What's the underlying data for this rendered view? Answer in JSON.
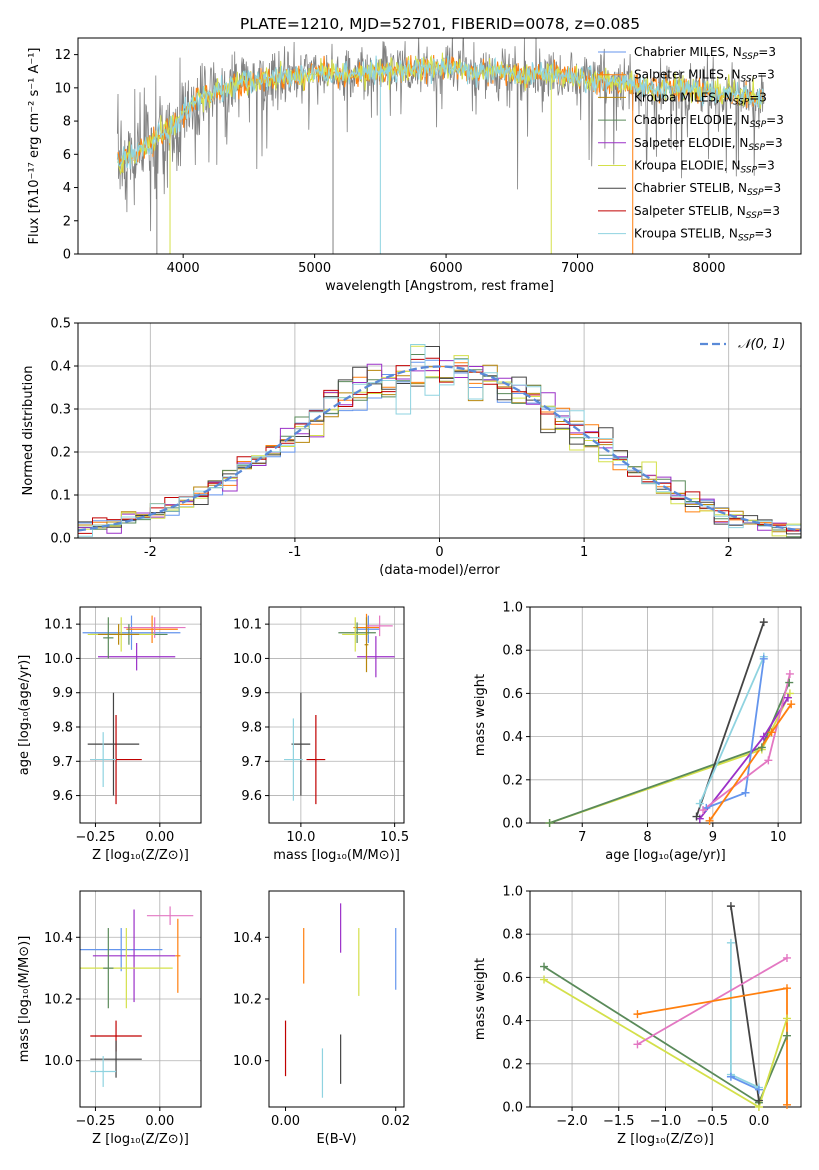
{
  "figure": {
    "title": "PLATE=1210, MJD=52701, FIBERID=0078, z=0.085"
  },
  "colors": {
    "chabrier_miles": "#6495ed",
    "salpeter_miles": "#ff7f0e",
    "kroupa_miles": "#b8860b",
    "chabrier_elodie": "#5a8a5a",
    "salpeter_elodie": "#9b30c8",
    "kroupa_elodie": "#d4e04a",
    "chabrier_stelib": "#444444",
    "salpeter_stelib": "#c00000",
    "kroupa_stelib": "#8fd3e0",
    "pink": "#e377c2",
    "gauss": "#5a8ad8",
    "grid": "#b0b0b0"
  },
  "chart_data": [
    {
      "id": "spectrum",
      "type": "line",
      "xlabel": "wavelength [Angstrom, rest frame]",
      "ylabel": "Flux [fλ10⁻¹⁷ erg cm⁻² s⁻¹ A⁻¹]",
      "xlim": [
        3200,
        8700
      ],
      "ylim": [
        0,
        13
      ],
      "xticks": [
        4000,
        5000,
        6000,
        7000,
        8000
      ],
      "yticks": [
        0,
        2,
        4,
        6,
        8,
        10,
        12
      ],
      "grid": false,
      "legend_position": "top-right",
      "legend": [
        "Chabrier MILES, N_SSP=3",
        "Salpeter MILES, N_SSP=3",
        "Kroupa MILES, N_SSP=3",
        "Chabrier ELODIE, N_SSP=3",
        "Salpeter ELODIE, N_SSP=3",
        "Kroupa ELODIE, N_SSP=3",
        "Chabrier STELIB, N_SSP=3",
        "Salpeter STELIB, N_SSP=3",
        "Kroupa STELIB, N_SSP=3"
      ],
      "continuum": [
        [
          3500,
          5.5
        ],
        [
          3600,
          5.8
        ],
        [
          3700,
          6.4
        ],
        [
          3800,
          7.0
        ],
        [
          3900,
          7.6
        ],
        [
          4000,
          8.4
        ],
        [
          4100,
          9.3
        ],
        [
          4200,
          9.6
        ],
        [
          4400,
          10.2
        ],
        [
          4600,
          10.5
        ],
        [
          4800,
          10.6
        ],
        [
          5000,
          10.9
        ],
        [
          5200,
          10.7
        ],
        [
          5400,
          10.9
        ],
        [
          5600,
          11.0
        ],
        [
          5800,
          11.2
        ],
        [
          6000,
          11.3
        ],
        [
          6200,
          11.0
        ],
        [
          6400,
          10.9
        ],
        [
          6600,
          10.8
        ],
        [
          6800,
          10.9
        ],
        [
          7000,
          10.6
        ],
        [
          7200,
          10.4
        ],
        [
          7400,
          10.1
        ],
        [
          7600,
          10.0
        ],
        [
          7800,
          9.9
        ],
        [
          8000,
          9.8
        ],
        [
          8200,
          9.6
        ],
        [
          8400,
          9.4
        ]
      ]
    },
    {
      "id": "residual_histogram",
      "type": "bar",
      "xlabel": "(data-model)/error",
      "ylabel": "Normed distribution",
      "xlim": [
        -2.5,
        2.5
      ],
      "ylim": [
        0,
        0.5
      ],
      "xticks": [
        -2,
        -1,
        0,
        1,
        2
      ],
      "yticks": [
        0.0,
        0.1,
        0.2,
        0.3,
        0.4,
        0.5
      ],
      "grid": true,
      "legend_position": "top-right",
      "gauss_label": "𝒩(0, 1)",
      "bin_width": 0.1
    },
    {
      "id": "age_vs_Z",
      "type": "scatter",
      "xlabel": "Z [log₁₀(Z/Z⊙)]",
      "ylabel": "age  [log₁₀(age/yr)]",
      "xlim": [
        -0.31,
        0.16
      ],
      "ylim": [
        9.52,
        10.15
      ],
      "xticks": [
        -0.25,
        0.0
      ],
      "xticklabels": [
        "−0.25",
        "0.00"
      ],
      "yticks": [
        9.6,
        9.7,
        9.8,
        9.9,
        10.0,
        10.1
      ],
      "grid": true,
      "points": [
        {
          "x": -0.11,
          "y": 10.075,
          "xerr": 0.19,
          "yerr": 0.05,
          "c": "chabrier_miles"
        },
        {
          "x": -0.03,
          "y": 10.085,
          "xerr": 0.1,
          "yerr": 0.04,
          "c": "salpeter_miles"
        },
        {
          "x": -0.02,
          "y": 10.09,
          "xerr": 0.12,
          "yerr": 0.03,
          "c": "pink"
        },
        {
          "x": -0.12,
          "y": 10.07,
          "xerr": 0.15,
          "yerr": 0.03,
          "c": "chabrier_elodie"
        },
        {
          "x": -0.09,
          "y": 10.005,
          "xerr": 0.15,
          "yerr": 0.04,
          "c": "salpeter_elodie"
        },
        {
          "x": -0.15,
          "y": 10.07,
          "xerr": 0.13,
          "yerr": 0.05,
          "c": "kroupa_elodie"
        },
        {
          "x": -0.16,
          "y": 10.07,
          "xerr": 0.08,
          "yerr": 0.03,
          "c": "kroupa_miles"
        },
        {
          "x": -0.2,
          "y": 10.06,
          "xerr": 0.02,
          "yerr": 0.06,
          "c": "chabrier_elodie"
        },
        {
          "x": -0.18,
          "y": 9.75,
          "xerr": 0.1,
          "yerr": 0.15,
          "c": "chabrier_stelib"
        },
        {
          "x": -0.17,
          "y": 9.705,
          "xerr": 0.1,
          "yerr": 0.13,
          "c": "salpeter_stelib"
        },
        {
          "x": -0.22,
          "y": 9.705,
          "xerr": 0.05,
          "yerr": 0.08,
          "c": "kroupa_stelib"
        }
      ]
    },
    {
      "id": "age_vs_mass",
      "type": "scatter",
      "xlabel": "mass [log₁₀(M/M⊙)]",
      "ylabel": "",
      "xlim": [
        9.83,
        10.55
      ],
      "ylim": [
        9.52,
        10.15
      ],
      "xticks": [
        10.0,
        10.5
      ],
      "xticklabels": [
        "10.0",
        "10.5"
      ],
      "yticks": [
        9.6,
        9.7,
        9.8,
        9.9,
        10.0,
        10.1
      ],
      "grid": true,
      "points": [
        {
          "x": 10.36,
          "y": 10.085,
          "xerr": 0.06,
          "yerr": 0.04,
          "c": "chabrier_miles"
        },
        {
          "x": 10.35,
          "y": 10.09,
          "xerr": 0.07,
          "yerr": 0.04,
          "c": "salpeter_miles"
        },
        {
          "x": 10.42,
          "y": 10.095,
          "xerr": 0.07,
          "yerr": 0.03,
          "c": "pink"
        },
        {
          "x": 10.3,
          "y": 10.075,
          "xerr": 0.1,
          "yerr": 0.03,
          "c": "chabrier_elodie"
        },
        {
          "x": 10.4,
          "y": 10.005,
          "xerr": 0.1,
          "yerr": 0.06,
          "c": "salpeter_elodie"
        },
        {
          "x": 10.29,
          "y": 10.07,
          "xerr": 0.07,
          "yerr": 0.05,
          "c": "kroupa_elodie"
        },
        {
          "x": 10.35,
          "y": 10.04,
          "xerr": 0.01,
          "yerr": 0.08,
          "c": "kroupa_miles"
        },
        {
          "x": 10.0,
          "y": 9.75,
          "xerr": 0.05,
          "yerr": 0.15,
          "c": "chabrier_stelib"
        },
        {
          "x": 10.08,
          "y": 9.705,
          "xerr": 0.05,
          "yerr": 0.13,
          "c": "salpeter_stelib"
        },
        {
          "x": 9.96,
          "y": 9.705,
          "xerr": 0.05,
          "yerr": 0.12,
          "c": "kroupa_stelib"
        }
      ]
    },
    {
      "id": "weight_vs_age",
      "type": "line",
      "xlabel": "age  [log₁₀(age/yr)]",
      "ylabel": "mass weight",
      "xlim": [
        6.2,
        10.35
      ],
      "ylim": [
        0.0,
        1.0
      ],
      "xticks": [
        7,
        8,
        9,
        10
      ],
      "yticks": [
        0.0,
        0.2,
        0.4,
        0.6,
        0.8,
        1.0
      ],
      "grid": true,
      "series": [
        {
          "c": "kroupa_elodie",
          "pts": [
            [
              6.5,
              0.0
            ],
            [
              9.75,
              0.34
            ],
            [
              10.18,
              0.6
            ]
          ]
        },
        {
          "c": "chabrier_elodie",
          "pts": [
            [
              6.5,
              0.0
            ],
            [
              9.75,
              0.35
            ],
            [
              10.17,
              0.65
            ]
          ]
        },
        {
          "c": "salpeter_elodie",
          "pts": [
            [
              8.8,
              0.02
            ],
            [
              9.78,
              0.4
            ],
            [
              10.15,
              0.58
            ]
          ]
        },
        {
          "c": "chabrier_stelib",
          "pts": [
            [
              8.75,
              0.03
            ],
            [
              9.78,
              0.93
            ]
          ]
        },
        {
          "c": "kroupa_stelib",
          "pts": [
            [
              8.8,
              0.09
            ],
            [
              9.78,
              0.77
            ]
          ]
        },
        {
          "c": "chabrier_miles",
          "pts": [
            [
              8.9,
              0.07
            ],
            [
              9.5,
              0.14
            ],
            [
              9.78,
              0.76
            ]
          ]
        },
        {
          "c": "pink",
          "pts": [
            [
              8.85,
              0.06
            ],
            [
              9.85,
              0.29
            ],
            [
              10.18,
              0.69
            ]
          ]
        },
        {
          "c": "salpeter_miles",
          "pts": [
            [
              8.95,
              0.01
            ],
            [
              9.9,
              0.42
            ],
            [
              10.2,
              0.55
            ]
          ]
        }
      ]
    },
    {
      "id": "mass_vs_Z",
      "type": "scatter",
      "xlabel": "Z [log₁₀(Z/Z⊙)]",
      "ylabel": "mass [log₁₀(M/M⊙)]",
      "xlim": [
        -0.31,
        0.16
      ],
      "ylim": [
        9.85,
        10.55
      ],
      "xticks": [
        -0.25,
        0.0
      ],
      "xticklabels": [
        "−0.25",
        "0.00"
      ],
      "yticks": [
        10.0,
        10.2,
        10.4
      ],
      "grid": true,
      "points": [
        {
          "x": -0.15,
          "y": 10.36,
          "xerr": 0.16,
          "yerr": 0.07,
          "c": "chabrier_miles"
        },
        {
          "x": 0.04,
          "y": 10.47,
          "xerr": 0.09,
          "yerr": 0.03,
          "c": "pink"
        },
        {
          "x": 0.07,
          "y": 10.34,
          "xerr": 0.01,
          "yerr": 0.12,
          "c": "salpeter_miles"
        },
        {
          "x": -0.1,
          "y": 10.34,
          "xerr": 0.16,
          "yerr": 0.15,
          "c": "salpeter_elodie"
        },
        {
          "x": -0.13,
          "y": 10.3,
          "xerr": 0.18,
          "yerr": 0.13,
          "c": "kroupa_elodie"
        },
        {
          "x": -0.2,
          "y": 10.3,
          "xerr": 0.02,
          "yerr": 0.13,
          "c": "chabrier_elodie"
        },
        {
          "x": -0.17,
          "y": 10.08,
          "xerr": 0.1,
          "yerr": 0.05,
          "c": "salpeter_stelib"
        },
        {
          "x": -0.17,
          "y": 10.005,
          "xerr": 0.1,
          "yerr": 0.06,
          "c": "chabrier_stelib"
        },
        {
          "x": -0.22,
          "y": 9.965,
          "xerr": 0.05,
          "yerr": 0.05,
          "c": "kroupa_stelib"
        }
      ]
    },
    {
      "id": "mass_vs_ebv",
      "type": "scatter",
      "xlabel": "E(B-V)",
      "ylabel": "",
      "xlim": [
        -0.003,
        0.0215
      ],
      "ylim": [
        9.85,
        10.55
      ],
      "xticks": [
        0.0,
        0.02
      ],
      "xticklabels": [
        "0.00",
        "0.02"
      ],
      "yticks": [
        10.0,
        10.2,
        10.4
      ],
      "grid": false,
      "points": [
        {
          "x": 0.0,
          "y": 10.04,
          "xerr": 0,
          "yerr": 0.09,
          "c": "salpeter_stelib"
        },
        {
          "x": 0.0033,
          "y": 10.34,
          "xerr": 0,
          "yerr": 0.09,
          "c": "salpeter_miles"
        },
        {
          "x": 0.0067,
          "y": 9.96,
          "xerr": 0,
          "yerr": 0.08,
          "c": "kroupa_stelib"
        },
        {
          "x": 0.01,
          "y": 10.43,
          "xerr": 0,
          "yerr": 0.08,
          "c": "salpeter_elodie"
        },
        {
          "x": 0.01,
          "y": 10.005,
          "xerr": 0,
          "yerr": 0.08,
          "c": "chabrier_stelib"
        },
        {
          "x": 0.0133,
          "y": 10.32,
          "xerr": 0,
          "yerr": 0.11,
          "c": "kroupa_elodie"
        },
        {
          "x": 0.02,
          "y": 10.33,
          "xerr": 0,
          "yerr": 0.1,
          "c": "chabrier_miles"
        }
      ]
    },
    {
      "id": "weight_vs_Z",
      "type": "line",
      "xlabel": "Z [log₁₀(Z/Z⊙)]",
      "ylabel": "mass weight",
      "xlim": [
        -2.45,
        0.45
      ],
      "ylim": [
        0.0,
        1.0
      ],
      "xticks": [
        -2.0,
        -1.5,
        -1.0,
        -0.5,
        0.0
      ],
      "xticklabels": [
        "−2.0",
        "−1.5",
        "−1.0",
        "−0.5",
        "0.0"
      ],
      "yticks": [
        0.0,
        0.2,
        0.4,
        0.6,
        0.8,
        1.0
      ],
      "grid": true,
      "series": [
        {
          "c": "chabrier_elodie",
          "pts": [
            [
              -2.3,
              0.65
            ],
            [
              0.0,
              0.02
            ],
            [
              0.3,
              0.33
            ]
          ]
        },
        {
          "c": "kroupa_elodie",
          "pts": [
            [
              -2.3,
              0.59
            ],
            [
              0.0,
              0.0
            ],
            [
              0.3,
              0.41
            ]
          ]
        },
        {
          "c": "chabrier_stelib",
          "pts": [
            [
              -0.3,
              0.93
            ],
            [
              0.0,
              0.03
            ]
          ]
        },
        {
          "c": "kroupa_stelib",
          "pts": [
            [
              -0.3,
              0.76
            ],
            [
              -0.3,
              0.15
            ],
            [
              0.0,
              0.09
            ]
          ]
        },
        {
          "c": "chabrier_miles",
          "pts": [
            [
              -0.3,
              0.14
            ],
            [
              0.0,
              0.08
            ]
          ]
        },
        {
          "c": "pink",
          "pts": [
            [
              -1.3,
              0.29
            ],
            [
              0.3,
              0.69
            ]
          ]
        },
        {
          "c": "salpeter_miles",
          "pts": [
            [
              -1.3,
              0.43
            ],
            [
              0.3,
              0.55
            ],
            [
              0.3,
              0.01
            ]
          ]
        }
      ]
    }
  ]
}
